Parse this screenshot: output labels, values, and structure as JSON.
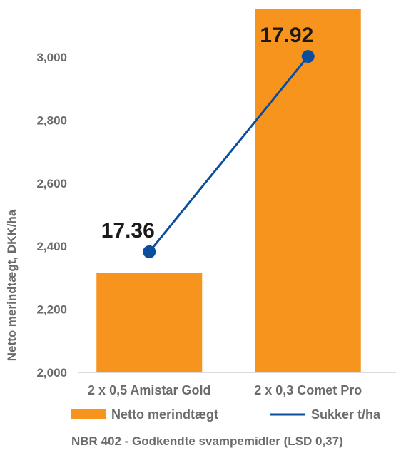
{
  "chart_data": {
    "type": "bar",
    "categories": [
      "2 x 0,5 Amistar Gold",
      "2 x 0,3 Comet Pro"
    ],
    "series": [
      {
        "name": "Netto merindtægt",
        "type": "bar",
        "axis": "left",
        "values": [
          2315,
          3155
        ],
        "color": "#f7941d"
      },
      {
        "name": "Sukker t/ha",
        "type": "line",
        "axis": "secondary",
        "values": [
          17.36,
          17.92
        ],
        "color": "#0b4f9c"
      }
    ],
    "data_labels": [
      "17.36",
      "17.92"
    ],
    "ylabel": "Netto merindtægt, DKK/ha",
    "ylim": [
      2000,
      3200
    ],
    "yticks": [
      2000,
      2200,
      2400,
      2600,
      2800,
      3000
    ],
    "ytick_labels": [
      "2,000",
      "2,200",
      "2,400",
      "2,600",
      "2,800",
      "3,000"
    ],
    "footnote": "NBR 402 - Godkendte svampemidler (LSD 0,37)",
    "legend_position": "bottom",
    "grid": false
  }
}
